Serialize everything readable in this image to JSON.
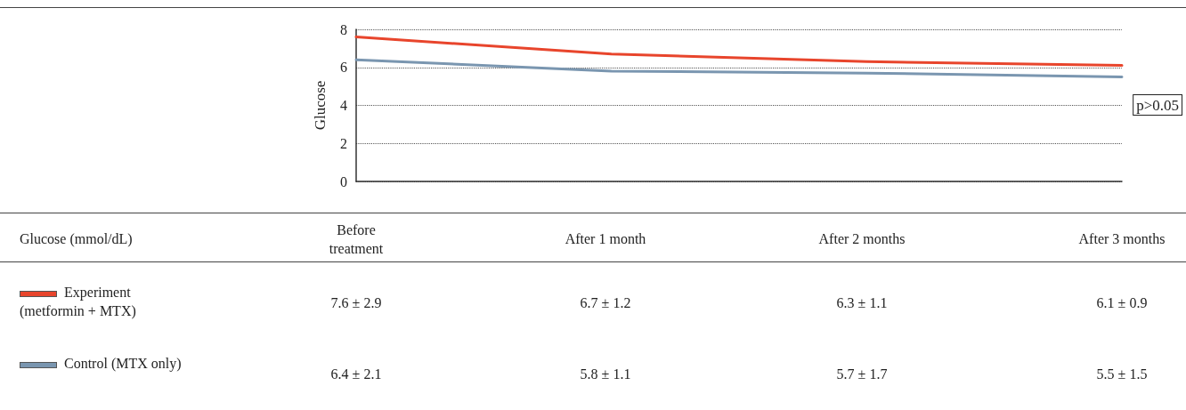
{
  "chart_data": {
    "type": "line",
    "ylabel": "Glucose",
    "legend_title": "Glucose (mmol/dL)",
    "categories": [
      "Before treatment",
      "After 1 month",
      "After 2 months",
      "After 3 months"
    ],
    "series": [
      {
        "name": "Experiment (metformin + MTX)",
        "color": "#e8452c",
        "values": [
          7.6,
          6.7,
          6.3,
          6.1
        ],
        "value_labels": [
          "7.6 ± 2.9",
          "6.7 ± 1.2",
          "6.3 ± 1.1",
          "6.1 ± 0.9"
        ]
      },
      {
        "name": "Control (MTX only)",
        "color": "#7a96b0",
        "values": [
          6.4,
          5.8,
          5.7,
          5.5
        ],
        "value_labels": [
          "6.4 ± 2.1",
          "5.8 ± 1.1",
          "5.7 ± 1.7",
          "5.5 ± 1.5"
        ]
      }
    ],
    "ylim": [
      0,
      8
    ],
    "yticks": [
      0,
      2,
      4,
      6,
      8
    ],
    "grid": "y",
    "marker": "none",
    "line_style": "solid",
    "legend": "bottom",
    "annotations": [
      "p>0.05"
    ]
  }
}
